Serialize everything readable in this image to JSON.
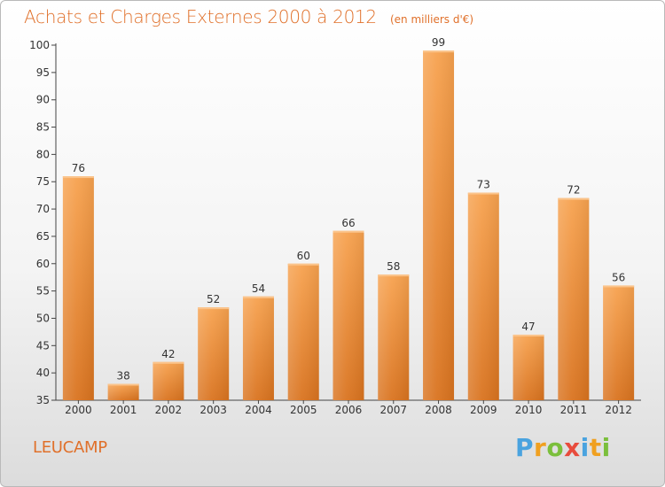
{
  "title": "Achats et Charges Externes 2000 à 2012",
  "subtitle": "(en milliers d'€)",
  "commune": "LEUCAMP",
  "logo": {
    "text": "Proxiti",
    "letters": [
      {
        "ch": "P",
        "color": "#4aa3df"
      },
      {
        "ch": "r",
        "color": "#f0a020"
      },
      {
        "ch": "o",
        "color": "#7bbf3c"
      },
      {
        "ch": "x",
        "color": "#e84c3d"
      },
      {
        "ch": "i",
        "color": "#4aa3df"
      },
      {
        "ch": "t",
        "color": "#f0a020"
      },
      {
        "ch": "i",
        "color": "#7bbf3c"
      }
    ]
  },
  "colors": {
    "accent": "#e0702a",
    "bar_top": "#f7a24f",
    "bar_bottom": "#d9731f"
  },
  "chart_data": {
    "type": "bar",
    "title": "Achats et Charges Externes 2000 à 2012",
    "subtitle": "(en milliers d'€)",
    "categories": [
      "2000",
      "2001",
      "2002",
      "2003",
      "2004",
      "2005",
      "2006",
      "2007",
      "2008",
      "2009",
      "2010",
      "2011",
      "2012"
    ],
    "values": [
      76,
      38,
      42,
      52,
      54,
      60,
      66,
      58,
      99,
      73,
      47,
      72,
      56
    ],
    "ylim": [
      35,
      100
    ],
    "yticks": [
      35,
      40,
      45,
      50,
      55,
      60,
      65,
      70,
      75,
      80,
      85,
      90,
      95,
      100
    ],
    "grid": false,
    "data_labels": true
  }
}
